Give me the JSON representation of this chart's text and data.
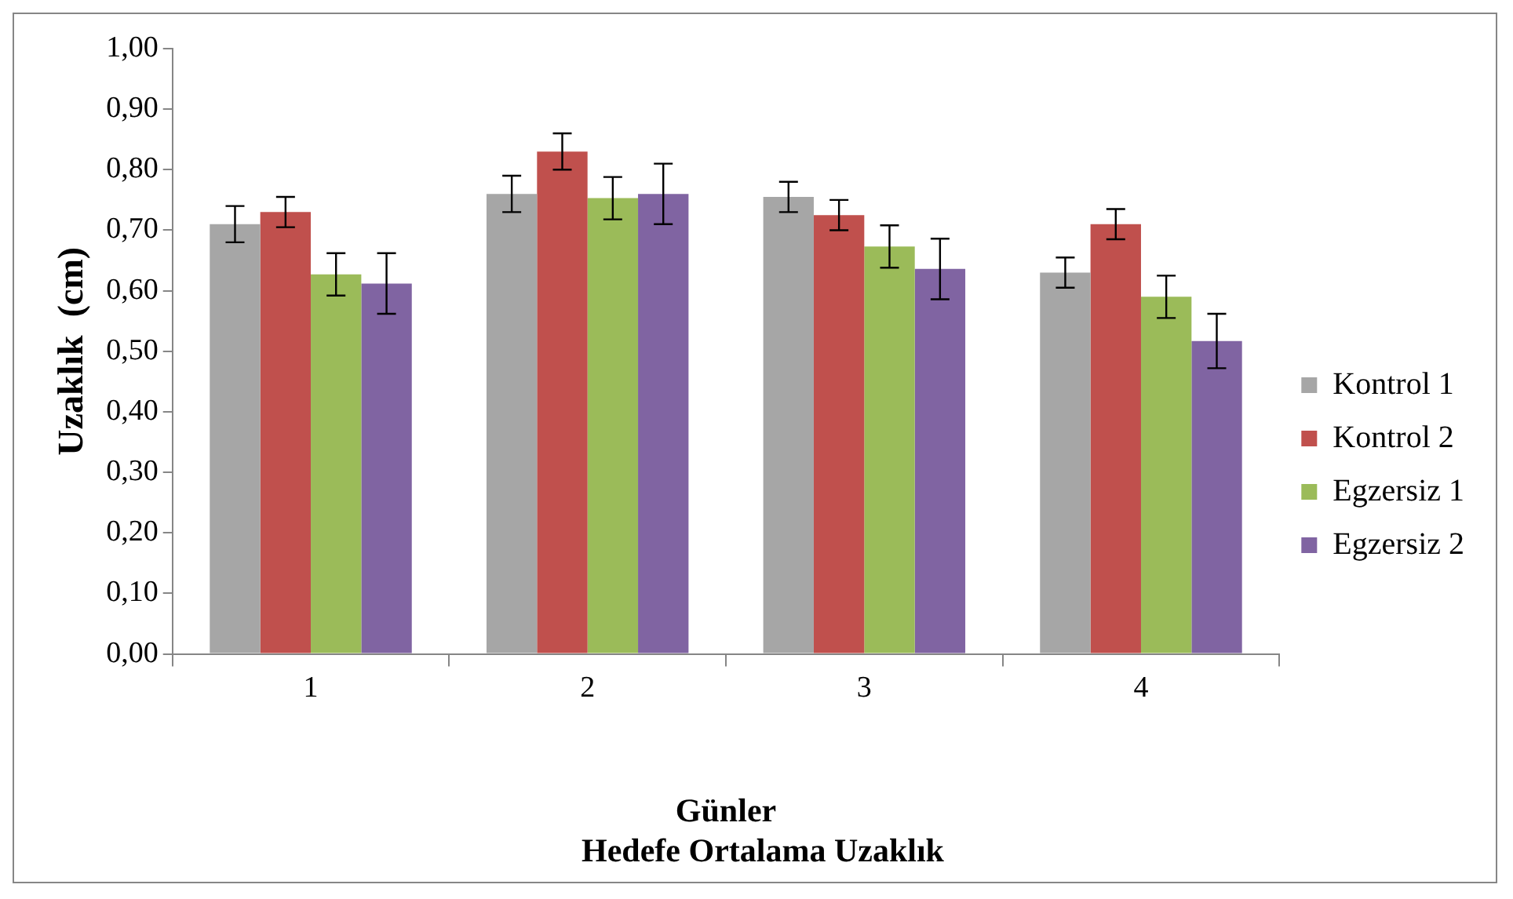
{
  "chart_data": {
    "type": "bar",
    "title": "Hedefe Ortalama Uzaklık",
    "xlabel": "Günler",
    "ylabel": "Uzaklık  (cm)",
    "categories": [
      "1",
      "2",
      "3",
      "4"
    ],
    "series": [
      {
        "name": "Kontrol 1",
        "color": "#a6a6a6",
        "values": [
          0.71,
          0.76,
          0.755,
          0.63
        ],
        "errors": [
          0.03,
          0.03,
          0.025,
          0.025
        ]
      },
      {
        "name": "Kontrol 2",
        "color": "#c0504d",
        "values": [
          0.73,
          0.83,
          0.725,
          0.71
        ],
        "errors": [
          0.025,
          0.03,
          0.025,
          0.025
        ]
      },
      {
        "name": "Egzersiz 1",
        "color": "#9bbb59",
        "values": [
          0.627,
          0.753,
          0.673,
          0.59
        ],
        "errors": [
          0.035,
          0.035,
          0.035,
          0.035
        ]
      },
      {
        "name": "Egzersiz 2",
        "color": "#8064a2",
        "values": [
          0.612,
          0.76,
          0.636,
          0.517
        ],
        "errors": [
          0.05,
          0.05,
          0.05,
          0.045
        ]
      }
    ],
    "ylim": [
      0,
      1
    ],
    "yticks": [
      {
        "value": 0,
        "label": "0,00"
      },
      {
        "value": 0.1,
        "label": "0,10"
      },
      {
        "value": 0.2,
        "label": "0,20"
      },
      {
        "value": 0.3,
        "label": "0,30"
      },
      {
        "value": 0.4,
        "label": "0,40"
      },
      {
        "value": 0.5,
        "label": "0,50"
      },
      {
        "value": 0.6,
        "label": "0,60"
      },
      {
        "value": 0.7,
        "label": "0,70"
      },
      {
        "value": 0.8,
        "label": "0,80"
      },
      {
        "value": 0.9,
        "label": "0,90"
      },
      {
        "value": 1,
        "label": "1,00"
      }
    ],
    "grid": false,
    "legend": "right"
  }
}
